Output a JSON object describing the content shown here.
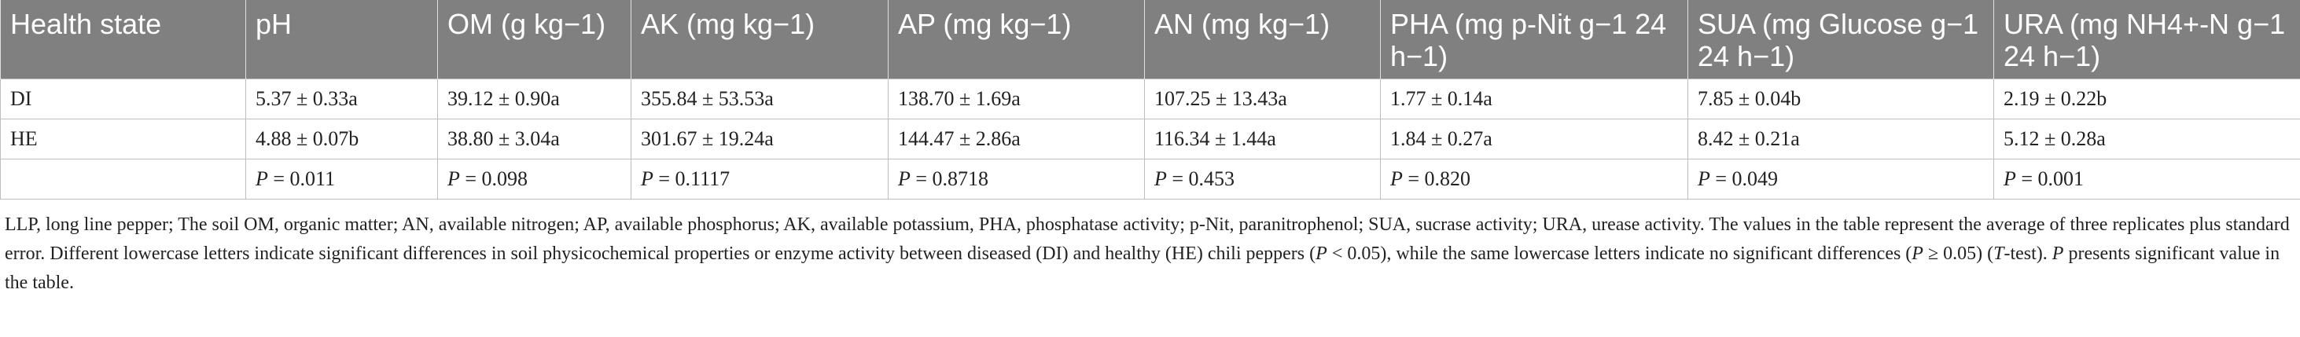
{
  "table": {
    "headers": [
      "Health state",
      "pH",
      "OM (g kg−1)",
      "AK (mg kg−1)",
      "AP (mg kg−1)",
      "AN (mg kg−1)",
      "PHA (mg p-Nit g−1 24 h−1)",
      "SUA (mg Glucose g−1 24 h−1)",
      "URA (mg NH4+-N g−1 24 h−1)"
    ],
    "rows": [
      {
        "state": "DI",
        "cells": [
          "5.37 ± 0.33a",
          "39.12 ± 0.90a",
          "355.84 ± 53.53a",
          "138.70 ± 1.69a",
          "107.25 ± 13.43a",
          "1.77 ± 0.14a",
          "7.85 ± 0.04b",
          "2.19 ± 0.22b"
        ]
      },
      {
        "state": "HE",
        "cells": [
          "4.88 ± 0.07b",
          "38.80 ± 3.04a",
          "301.67 ± 19.24a",
          "144.47 ± 2.86a",
          "116.34 ± 1.44a",
          "1.84 ± 0.27a",
          "8.42 ± 0.21a",
          "5.12 ± 0.28a"
        ]
      },
      {
        "state": "",
        "p_prefix": "P",
        "p_values": [
          "= 0.011",
          "= 0.098",
          "= 0.1117",
          "= 0.8718",
          "= 0.453",
          "= 0.820",
          "= 0.049",
          "= 0.001"
        ]
      }
    ]
  },
  "footnote": {
    "part1": "LLP, long line pepper; The soil OM, organic matter; AN, available nitrogen; AP, available phosphorus; AK, available potassium, PHA, phosphatase activity; p-Nit, paranitrophenol; SUA, sucrase activity; URA, urease activity. The values in the table represent the average of three replicates plus standard error. Different lowercase letters indicate significant differences in soil physicochemical properties or enzyme activity between diseased (DI) and healthy (HE) chili peppers (",
    "p1": "P",
    "part2": " < 0.05), while the same lowercase letters indicate no significant differences (",
    "p2": "P",
    "part3": " ≥ 0.05) (",
    "t": "T",
    "part4": "-test). ",
    "p3": "P",
    "part5": " presents significant value in the table."
  }
}
